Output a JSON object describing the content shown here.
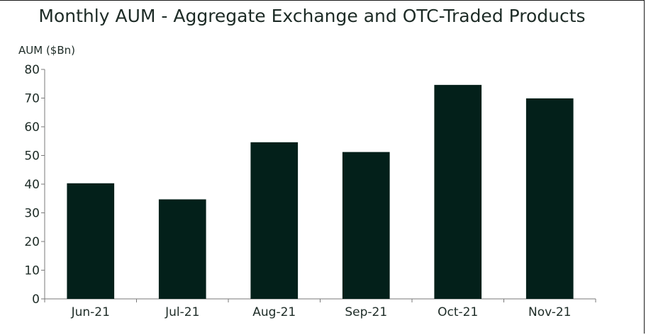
{
  "chart_data": {
    "type": "bar",
    "title": "Monthly AUM - Aggregate Exchange and OTC-Traded Products",
    "ylabel": "AUM ($Bn)",
    "xlabel": "",
    "categories": [
      "Jun-21",
      "Jul-21",
      "Aug-21",
      "Sep-21",
      "Oct-21",
      "Nov-21"
    ],
    "values": [
      40.3,
      34.7,
      54.6,
      51.2,
      74.6,
      69.9
    ],
    "ylim": [
      0,
      80
    ],
    "yticks": [
      0,
      10,
      20,
      30,
      40,
      50,
      60,
      70,
      80
    ],
    "bar_color": "#03201a",
    "grid": false,
    "legend": "none"
  }
}
